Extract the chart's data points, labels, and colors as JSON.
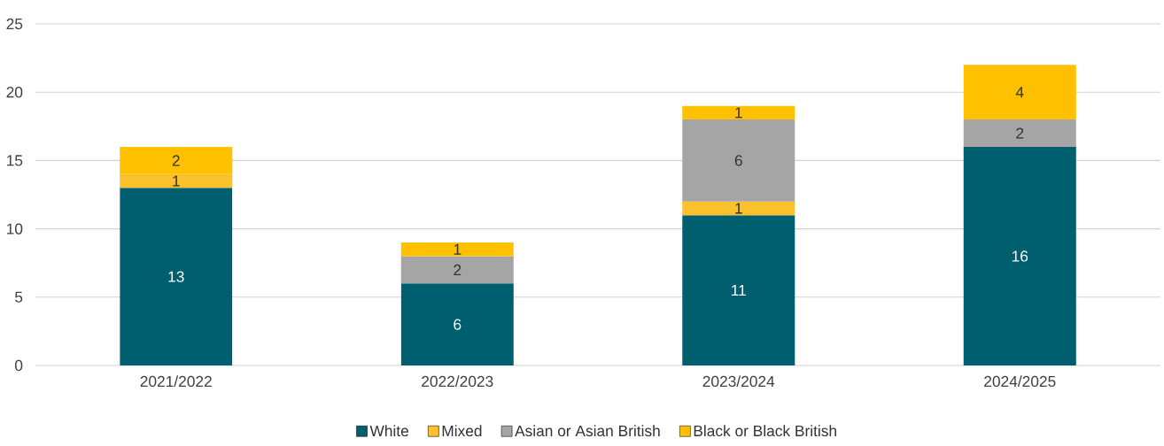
{
  "chart_data": {
    "type": "bar",
    "stacked": true,
    "categories": [
      "2021/2022",
      "2022/2023",
      "2023/2024",
      "2024/2025"
    ],
    "series": [
      {
        "name": "White",
        "color": "#005f6e",
        "values": [
          13,
          6,
          11,
          16
        ]
      },
      {
        "name": "Mixed",
        "color": "#fbc12d",
        "values": [
          1,
          null,
          1,
          null
        ]
      },
      {
        "name": "Asian or Asian British",
        "color": "#a5a5a5",
        "values": [
          null,
          2,
          6,
          2
        ]
      },
      {
        "name": "Black or Black British",
        "color": "#ffc000",
        "values": [
          2,
          1,
          1,
          4
        ]
      }
    ],
    "ylim": [
      0,
      25
    ],
    "yticks": [
      0,
      5,
      10,
      15,
      20,
      25
    ],
    "grid": "y",
    "legend": "bottom",
    "data_labels": true
  }
}
